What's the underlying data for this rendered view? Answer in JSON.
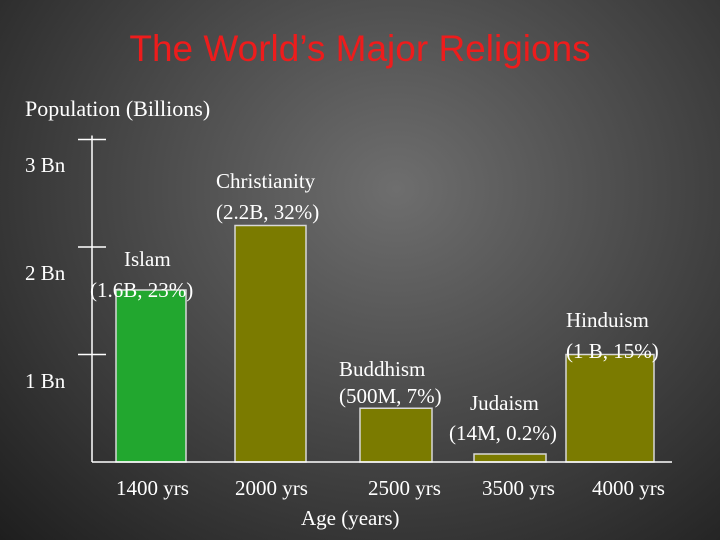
{
  "chart_data": {
    "type": "bar",
    "title": "The World’s Major Religions",
    "ylabel": "Population (Billions)",
    "xlabel": "Age (years)",
    "ylim": [
      0,
      3
    ],
    "y_ticks": [
      {
        "value": 3,
        "label": "3 Bn"
      },
      {
        "value": 2,
        "label": "2 Bn"
      },
      {
        "value": 1,
        "label": "1 Bn"
      }
    ],
    "x_tick_labels": [
      "1400 yrs",
      "2000 yrs",
      "2500 yrs",
      "3500 yrs",
      "4000 yrs"
    ],
    "categories": [
      "Islam",
      "Christianity",
      "Buddhism",
      "Judaism",
      "Hinduism"
    ],
    "values": [
      1.6,
      2.2,
      0.5,
      0.014,
      1.0
    ],
    "bar_labels": [
      {
        "name": "Islam",
        "detail": "(1.6B, 23%)",
        "color": "#22a72f"
      },
      {
        "name": "Christianity",
        "detail": "(2.2B, 32%)",
        "color": "#7b7b00"
      },
      {
        "name": "Buddhism",
        "detail": "(500M, 7%)",
        "color": "#7b7b00"
      },
      {
        "name": "Judaism",
        "detail": "(14M, 0.2%)",
        "color": "#7b7b00"
      },
      {
        "name": "Hinduism",
        "detail": "(1 B, 15%)",
        "color": "#7b7b00"
      }
    ],
    "colors": {
      "title": "#ee1c1c",
      "islam": "#22a72f",
      "others": "#7b7b00"
    }
  }
}
